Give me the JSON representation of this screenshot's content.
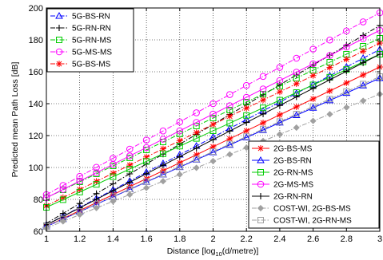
{
  "chart_data": {
    "type": "line",
    "xlabel_prefix": "Distance [log",
    "xlabel_sub": "10",
    "xlabel_suffix": "(d/metre)]",
    "ylabel": "Predicted mean Path Loss [dB]",
    "xlim": [
      1,
      3
    ],
    "ylim": [
      60,
      200
    ],
    "xticks": [
      1,
      1.2,
      1.4,
      1.6,
      1.8,
      2,
      2.2,
      2.4,
      2.6,
      2.8,
      3
    ],
    "xtick_labels": [
      "1",
      "1.2",
      "1.4",
      "1.6",
      "1.8",
      "2",
      "2.2",
      "2.4",
      "2.6",
      "2.8",
      "3"
    ],
    "yticks": [
      60,
      80,
      100,
      120,
      140,
      160,
      180,
      200
    ],
    "ytick_labels": [
      "60",
      "80",
      "100",
      "120",
      "140",
      "160",
      "180",
      "200"
    ],
    "grid": true,
    "legends": [
      {
        "placement": "top-left",
        "series": [
          0,
          1,
          2,
          3,
          4
        ]
      },
      {
        "placement": "bottom-right",
        "series": [
          5,
          6,
          7,
          8,
          9,
          10,
          11
        ]
      }
    ],
    "series": [
      {
        "name": "5G-BS-RN",
        "color": "#0000ff",
        "marker": "triangle",
        "dash": "dashdot",
        "x_start": 1,
        "x_end": 3,
        "y_start": 64,
        "y_end": 174
      },
      {
        "name": "5G-RN-RN",
        "color": "#000000",
        "marker": "plus",
        "dash": "dashdot",
        "x_start": 1,
        "x_end": 3,
        "y_start": 65,
        "y_end": 189
      },
      {
        "name": "5G-RN-MS",
        "color": "#00cc00",
        "marker": "square",
        "dash": "dashdot",
        "x_start": 1,
        "x_end": 3,
        "y_start": 81,
        "y_end": 181
      },
      {
        "name": "5G-MS-MS",
        "color": "#ff00ff",
        "marker": "circle",
        "dash": "dashdot",
        "x_start": 1,
        "x_end": 3,
        "y_start": 83,
        "y_end": 197
      },
      {
        "name": "5G-BS-MS",
        "color": "#ff0000",
        "marker": "star",
        "dash": "dashdot",
        "x_start": 1,
        "x_end": 3,
        "y_start": 76,
        "y_end": 178
      },
      {
        "name": "2G-BS-MS",
        "color": "#ff0000",
        "marker": "star",
        "dash": "solid",
        "x_start": 1,
        "x_end": 3,
        "y_start": 63,
        "y_end": 163
      },
      {
        "name": "2G-BS-RN",
        "color": "#0000ff",
        "marker": "triangle",
        "dash": "solid",
        "x_start": 1,
        "x_end": 3,
        "y_start": 63,
        "y_end": 156
      },
      {
        "name": "2G-RN-MS",
        "color": "#00cc00",
        "marker": "square",
        "dash": "solid",
        "x_start": 1,
        "x_end": 3,
        "y_start": 75,
        "y_end": 171
      },
      {
        "name": "2G-MS-MS",
        "color": "#ff00ff",
        "marker": "circle",
        "dash": "solid",
        "x_start": 1,
        "x_end": 3,
        "y_start": 81,
        "y_end": 186
      },
      {
        "name": "2G-RN-RN",
        "color": "#000000",
        "marker": "plus",
        "dash": "solid",
        "x_start": 1,
        "x_end": 3,
        "y_start": 64,
        "y_end": 171
      },
      {
        "name": "COST-WI, 2G-BS-MS",
        "color": "#a0a0a0",
        "marker": "diamond",
        "dash": "dashdot",
        "x_start": 1,
        "x_end": 3,
        "y_start": 62,
        "y_end": 146
      },
      {
        "name": "COST-WI, 2G-RN-MS",
        "color": "#a0a0a0",
        "marker": "square",
        "dash": "dashdot",
        "x_start": 1,
        "x_end": 3,
        "y_start": 63,
        "y_end": 157
      }
    ]
  }
}
